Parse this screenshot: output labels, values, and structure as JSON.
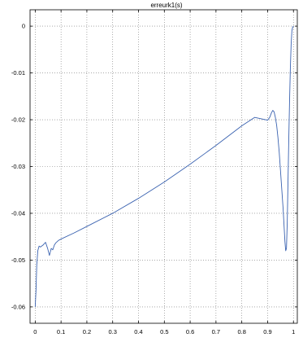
{
  "chart_data": {
    "type": "line",
    "title": "erreurk1(s)",
    "xlabel": "",
    "ylabel": "",
    "xlim": [
      -0.02,
      1.015
    ],
    "ylim": [
      -0.0635,
      0.0035
    ],
    "grid": true,
    "xticks": [
      0,
      0.1,
      0.2,
      0.3,
      0.4,
      0.5,
      0.6,
      0.7,
      0.8,
      0.9,
      1
    ],
    "xtick_labels": [
      "0",
      "0.1",
      "0.2",
      "0.3",
      "0.4",
      "0.5",
      "0.6",
      "0.7",
      "0.8",
      "0.9",
      "1"
    ],
    "yticks": [
      0,
      -0.01,
      -0.02,
      -0.03,
      -0.04,
      -0.05,
      -0.06
    ],
    "ytick_labels": [
      "0",
      "-0.01",
      "-0.02",
      "-0.03",
      "-0.04",
      "-0.05",
      "-0.06"
    ],
    "colors": {
      "line": "#3a62b0",
      "axes": "#000000",
      "grid": "#777777",
      "background": "#ffffff"
    },
    "series": [
      {
        "x": [
          0,
          0.003,
          0.006,
          0.01,
          0.015,
          0.02,
          0.03,
          0.04,
          0.048,
          0.055,
          0.062,
          0.068,
          0.074,
          0.08,
          0.09,
          0.1,
          0.15,
          0.2,
          0.3,
          0.4,
          0.5,
          0.6,
          0.7,
          0.8,
          0.85,
          0.9,
          0.908,
          0.915,
          0.92,
          0.925,
          0.93,
          0.935,
          0.94,
          0.945,
          0.95,
          0.955,
          0.96,
          0.964,
          0.967,
          0.97,
          0.973,
          0.976,
          0.979,
          0.982,
          0.985,
          0.988,
          0.991,
          0.994,
          0.997,
          1
        ],
        "y": [
          -0.06,
          -0.0565,
          -0.051,
          -0.048,
          -0.047,
          -0.0472,
          -0.0468,
          -0.0462,
          -0.0475,
          -0.049,
          -0.0475,
          -0.0478,
          -0.0468,
          -0.0463,
          -0.0458,
          -0.0455,
          -0.0442,
          -0.0428,
          -0.04,
          -0.0368,
          -0.0333,
          -0.0295,
          -0.0255,
          -0.0213,
          -0.0195,
          -0.0201,
          -0.0195,
          -0.0185,
          -0.018,
          -0.0183,
          -0.0195,
          -0.0212,
          -0.0238,
          -0.027,
          -0.031,
          -0.035,
          -0.039,
          -0.043,
          -0.046,
          -0.048,
          -0.0475,
          -0.042,
          -0.033,
          -0.024,
          -0.016,
          -0.009,
          -0.004,
          -0.001,
          -0.0002,
          0
        ]
      }
    ]
  }
}
